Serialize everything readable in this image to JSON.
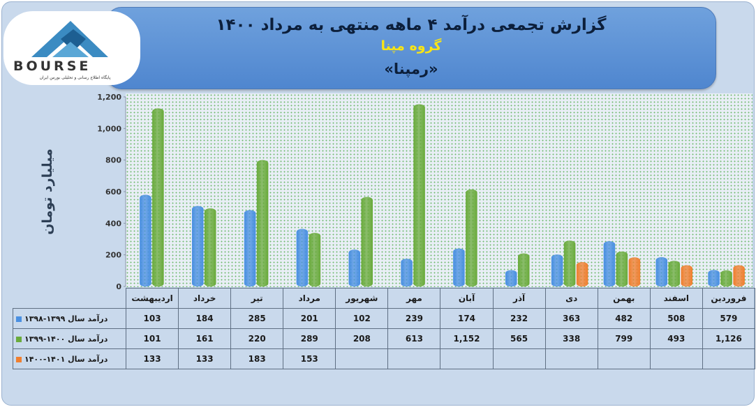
{
  "header": {
    "title": "گزارش تجمعی درآمد ۴ ماهه منتهی به مرداد ۱۴۰۰",
    "company": "گروه مپنا",
    "ticker": "«رمپنا»"
  },
  "logo": {
    "brand": "BOURSE",
    "caption": "پایگاه اطلاع رسانی و تحلیلی بورس ایران"
  },
  "chart_data": {
    "type": "bar",
    "ylabel": "میلیارد تومان",
    "ylim": [
      0,
      1200
    ],
    "yticks": [
      "0",
      "200",
      "400",
      "600",
      "800",
      "1,000",
      "1,200"
    ],
    "grid": false,
    "categories": [
      "فروردین",
      "اسفند",
      "بهمن",
      "دی",
      "آذر",
      "آبان",
      "مهر",
      "شهریور",
      "مرداد",
      "تیر",
      "خرداد",
      "اردیبهشت"
    ],
    "series": [
      {
        "name": "درآمد سال ۱۳۹۹-۱۳۹۸",
        "color": "#4a90e2",
        "values": [
          579,
          508,
          482,
          363,
          232,
          174,
          239,
          102,
          201,
          285,
          184,
          103
        ]
      },
      {
        "name": "درآمد سال ۱۴۰۰-۱۳۹۹",
        "color": "#6aab3c",
        "values": [
          1126,
          493,
          799,
          338,
          565,
          1152,
          613,
          208,
          289,
          220,
          161,
          101
        ]
      },
      {
        "name": "درآمد سال ۱۴۰۱-۱۴۰۰",
        "color": "#f07f2f",
        "values": [
          null,
          null,
          null,
          null,
          null,
          null,
          null,
          null,
          153,
          183,
          133,
          133
        ]
      }
    ]
  },
  "table": {
    "rows": [
      [
        "579",
        "508",
        "482",
        "363",
        "232",
        "174",
        "239",
        "102",
        "201",
        "285",
        "184",
        "103"
      ],
      [
        "1,126",
        "493",
        "799",
        "338",
        "565",
        "1,152",
        "613",
        "208",
        "289",
        "220",
        "161",
        "101"
      ],
      [
        "",
        "",
        "",
        "",
        "",
        "",
        "",
        "",
        "153",
        "183",
        "133",
        "133"
      ]
    ]
  }
}
